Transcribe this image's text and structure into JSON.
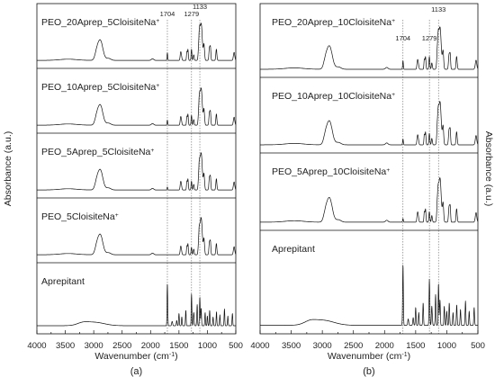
{
  "chart_data": [
    {
      "type": "line",
      "panel_label": "(a)",
      "xlabel_main": "Wavenumber (cm",
      "xlabel_sup": "-1",
      "xlabel_end": ")",
      "ylabel": "Absorbance (a.u.)",
      "xlim": [
        4000,
        500
      ],
      "xticks": [
        "4000",
        "3500",
        "3000",
        "2500",
        "2000",
        "1500",
        "1000",
        "500"
      ],
      "y_ticks_visible": false,
      "annotations": [
        "1704",
        "1279",
        "1133"
      ],
      "annotation_positions": [
        1704,
        1279,
        1133
      ],
      "guide_lines": [
        1704,
        1279,
        1133
      ],
      "series": [
        {
          "name_main": "PEO_20Aprep_5CloisiteNa",
          "name_sup": "+",
          "kind": "peo",
          "aprep_level": 0.45
        },
        {
          "name_main": "PEO_10Aprep_5CloisiteNa",
          "name_sup": "+",
          "kind": "peo",
          "aprep_level": 0.3
        },
        {
          "name_main": "PEO_5Aprep_5CloisiteNa",
          "name_sup": "+",
          "kind": "peo",
          "aprep_level": 0.18
        },
        {
          "name_main": "PEO_5CloisiteNa",
          "name_sup": "+",
          "kind": "peo",
          "aprep_level": 0.0
        },
        {
          "name_main": "Aprepitant",
          "name_sup": "",
          "kind": "aprep",
          "aprep_level": 1.0
        }
      ]
    },
    {
      "type": "line",
      "panel_label": "(b)",
      "xlabel_main": "Wavenumber (cm",
      "xlabel_sup": "-1",
      "xlabel_end": ")",
      "ylabel": "Absorbance (a.u.)",
      "xlim": [
        4000,
        500
      ],
      "xticks": [
        "4000",
        "3500",
        "3000",
        "2500",
        "2000",
        "1500",
        "1000",
        "500"
      ],
      "y_ticks_visible": false,
      "annotations": [
        "1704",
        "1279",
        "1133"
      ],
      "annotation_positions": [
        1704,
        1279,
        1133
      ],
      "guide_lines": [
        1704,
        1279,
        1133
      ],
      "series": [
        {
          "name_main": "PEO_20Aprep_10CloisiteNa",
          "name_sup": "+",
          "kind": "peo",
          "aprep_level": 0.45
        },
        {
          "name_main": "PEO_10Aprep_10CloisiteNa",
          "name_sup": "+",
          "kind": "peo",
          "aprep_level": 0.3
        },
        {
          "name_main": "PEO_5Aprep_10CloisiteNa",
          "name_sup": "+",
          "kind": "peo",
          "aprep_level": 0.18
        },
        {
          "name_main": "Aprepitant",
          "name_sup": "",
          "kind": "aprep",
          "aprep_level": 1.0
        }
      ]
    }
  ]
}
